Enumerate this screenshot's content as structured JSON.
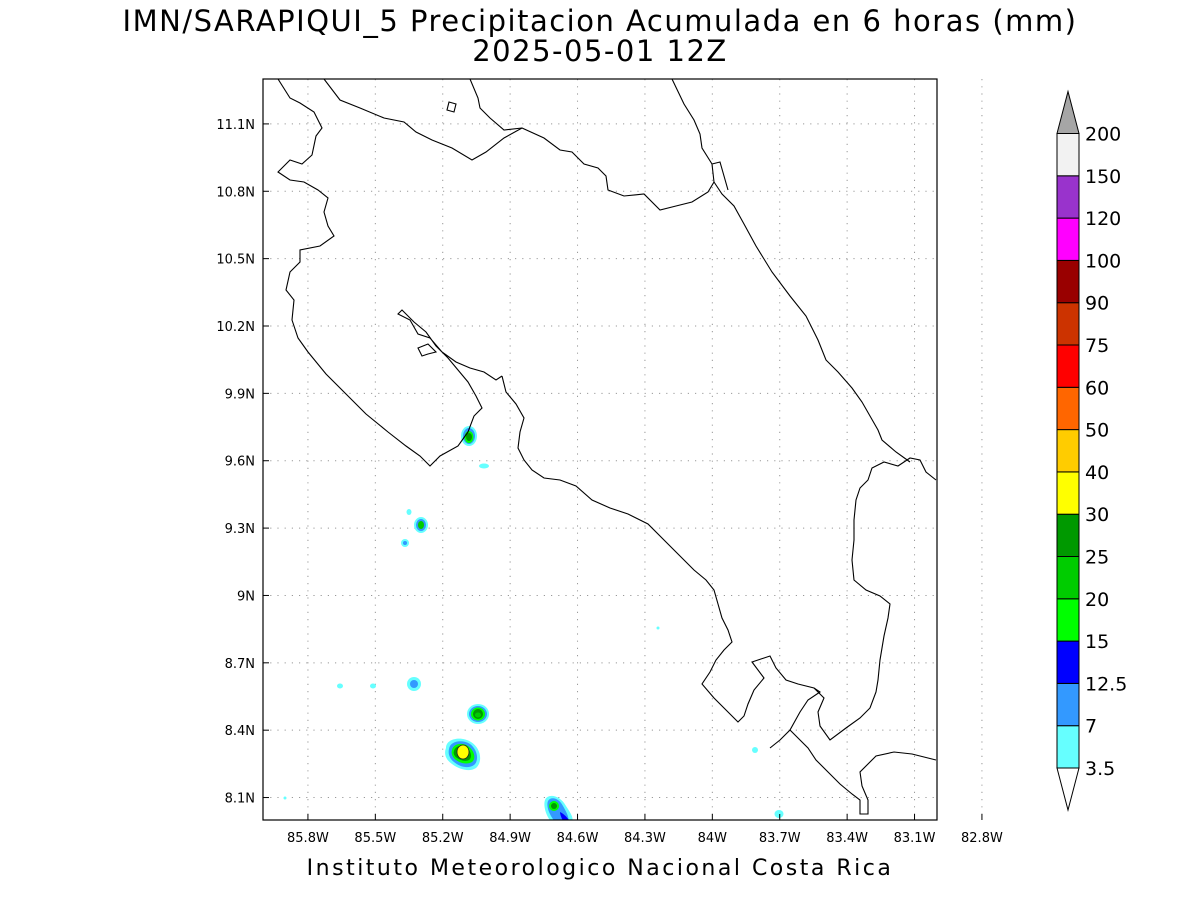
{
  "title": {
    "line1": "IMN/SARAPIQUI_5 Precipitacion Acumulada en 6 horas (mm)",
    "line2": "2025-05-01 12Z"
  },
  "footer": "Instituto Meteorologico Nacional Costa Rica",
  "map": {
    "lon_range": [
      -86.0,
      -83.0
    ],
    "lat_range": [
      8.0,
      11.3
    ],
    "x_ticks": [
      "85.8W",
      "85.5W",
      "85.2W",
      "84.9W",
      "84.6W",
      "84.3W",
      "84W",
      "83.7W",
      "83.4W",
      "83.1W",
      "82.8W"
    ],
    "y_ticks": [
      "8.1N",
      "8.4N",
      "8.7N",
      "9N",
      "9.3N",
      "9.6N",
      "9.9N",
      "10.2N",
      "10.5N",
      "10.8N",
      "11.1N"
    ],
    "grid": true
  },
  "legend": {
    "levels": [
      "3.5",
      "7",
      "12.5",
      "15",
      "20",
      "25",
      "30",
      "40",
      "50",
      "60",
      "75",
      "90",
      "100",
      "120",
      "150",
      "200"
    ],
    "colors": [
      "#ffffff",
      "#66ffff",
      "#3399ff",
      "#0000ff",
      "#00ff00",
      "#00cc00",
      "#009900",
      "#ffff00",
      "#ffcc00",
      "#ff6600",
      "#ff0000",
      "#cc3300",
      "#990000",
      "#ff00ff",
      "#9933cc",
      "#f2f2f2",
      "#a6a6a6"
    ]
  }
}
